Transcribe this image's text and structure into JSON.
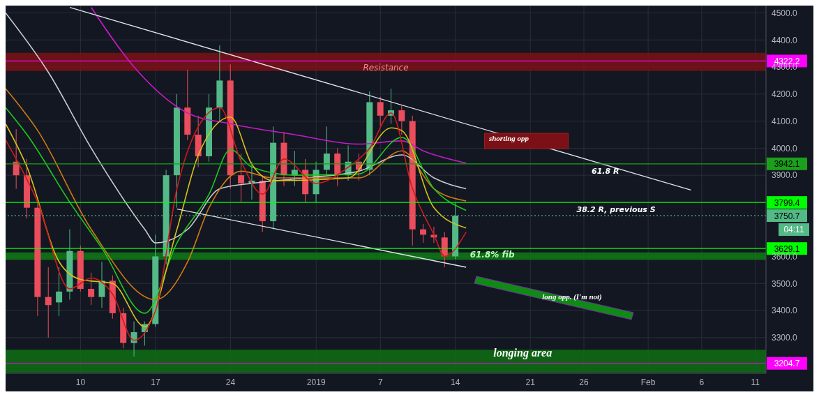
{
  "chart_data": {
    "type": "candlestick",
    "x": [
      "2018-12-04",
      "2018-12-05",
      "2018-12-06",
      "2018-12-07",
      "2018-12-08",
      "2018-12-09",
      "2018-12-10",
      "2018-12-11",
      "2018-12-12",
      "2018-12-13",
      "2018-12-14",
      "2018-12-15",
      "2018-12-16",
      "2018-12-17",
      "2018-12-18",
      "2018-12-19",
      "2018-12-20",
      "2018-12-21",
      "2018-12-22",
      "2018-12-23",
      "2018-12-24",
      "2018-12-25",
      "2018-12-26",
      "2018-12-27",
      "2018-12-28",
      "2018-12-29",
      "2018-12-30",
      "2018-12-31",
      "2019-01-01",
      "2019-01-02",
      "2019-01-03",
      "2019-01-04",
      "2019-01-05",
      "2019-01-06",
      "2019-01-07",
      "2019-01-08",
      "2019-01-09",
      "2019-01-10",
      "2019-01-11",
      "2019-01-12",
      "2019-01-13",
      "2019-01-14"
    ],
    "ohlc": [
      [
        3950,
        4070,
        3850,
        3900
      ],
      [
        3900,
        3960,
        3740,
        3780
      ],
      [
        3780,
        3800,
        3380,
        3450
      ],
      [
        3450,
        3560,
        3300,
        3420
      ],
      [
        3430,
        3560,
        3380,
        3470
      ],
      [
        3470,
        3700,
        3440,
        3620
      ],
      [
        3620,
        3640,
        3470,
        3480
      ],
      [
        3480,
        3540,
        3420,
        3450
      ],
      [
        3450,
        3580,
        3410,
        3510
      ],
      [
        3510,
        3530,
        3370,
        3390
      ],
      [
        3390,
        3410,
        3260,
        3280
      ],
      [
        3280,
        3360,
        3230,
        3320
      ],
      [
        3320,
        3360,
        3270,
        3350
      ],
      [
        3350,
        3680,
        3340,
        3600
      ],
      [
        3600,
        3920,
        3570,
        3900
      ],
      [
        3900,
        4200,
        3780,
        4150
      ],
      [
        4150,
        4290,
        4030,
        4050
      ],
      [
        4050,
        4120,
        3930,
        3970
      ],
      [
        3970,
        4200,
        3950,
        4150
      ],
      [
        4150,
        4380,
        4100,
        4250
      ],
      [
        4250,
        4310,
        3850,
        3900
      ],
      [
        3900,
        3980,
        3800,
        3870
      ],
      [
        3870,
        3950,
        3810,
        3880
      ],
      [
        3880,
        3900,
        3690,
        3730
      ],
      [
        3730,
        4080,
        3700,
        4020
      ],
      [
        4020,
        4060,
        3860,
        3900
      ],
      [
        3900,
        3990,
        3860,
        3920
      ],
      [
        3920,
        3960,
        3800,
        3830
      ],
      [
        3830,
        3950,
        3800,
        3920
      ],
      [
        3920,
        4080,
        3900,
        3980
      ],
      [
        3980,
        4000,
        3860,
        3900
      ],
      [
        3900,
        4010,
        3880,
        3950
      ],
      [
        3950,
        3980,
        3880,
        3920
      ],
      [
        3920,
        4210,
        3900,
        4170
      ],
      [
        4170,
        4190,
        4080,
        4120
      ],
      [
        4120,
        4220,
        4090,
        4140
      ],
      [
        4140,
        4160,
        4050,
        4100
      ],
      [
        4100,
        4120,
        3640,
        3700
      ],
      [
        3700,
        3720,
        3650,
        3680
      ],
      [
        3680,
        3710,
        3650,
        3670
      ],
      [
        3670,
        3690,
        3560,
        3600
      ],
      [
        3600,
        3800,
        3590,
        3750.7
      ]
    ],
    "colors": [
      "#eb4d5c",
      "#eb4d5c",
      "#eb4d5c",
      "#eb4d5c",
      "#53b987",
      "#53b987",
      "#eb4d5c",
      "#eb4d5c",
      "#53b987",
      "#eb4d5c",
      "#eb4d5c",
      "#53b987",
      "#53b987",
      "#53b987",
      "#53b987",
      "#53b987",
      "#eb4d5c",
      "#eb4d5c",
      "#53b987",
      "#53b987",
      "#eb4d5c",
      "#eb4d5c",
      "#53b987",
      "#eb4d5c",
      "#53b987",
      "#eb4d5c",
      "#53b987",
      "#eb4d5c",
      "#53b987",
      "#53b987",
      "#eb4d5c",
      "#53b987",
      "#eb4d5c",
      "#53b987",
      "#eb4d5c",
      "#53b987",
      "#eb4d5c",
      "#eb4d5c",
      "#eb4d5c",
      "#eb4d5c",
      "#eb4d5c",
      "#53b987"
    ],
    "series": [
      {
        "type": "line",
        "color": "#c61bc6",
        "x": [
          "2018-12-11",
          "2018-12-15",
          "2018-12-20",
          "2018-12-24",
          "2018-12-30",
          "2019-01-05",
          "2019-01-09",
          "2019-01-11",
          "2019-01-15"
        ],
        "values": [
          4520,
          4300,
          4130,
          4090,
          4050,
          4015,
          4027,
          3990,
          3945
        ]
      },
      {
        "type": "line",
        "color": "#c9c9d0",
        "x": [
          "2018-12-03",
          "2018-12-07",
          "2018-12-11",
          "2018-12-16",
          "2018-12-17",
          "2018-12-20",
          "2018-12-23",
          "2018-12-26",
          "2018-12-31",
          "2019-01-05",
          "2019-01-09",
          "2019-01-12",
          "2019-01-15"
        ],
        "values": [
          4500,
          4280,
          4000,
          3700,
          3650,
          3700,
          3850,
          3870,
          3890,
          3915,
          3975,
          3890,
          3850
        ]
      },
      {
        "type": "line",
        "color": "#d07a10",
        "x": [
          "2018-12-03",
          "2018-12-06",
          "2018-12-11",
          "2018-12-17",
          "2018-12-20",
          "2018-12-22",
          "2018-12-25",
          "2018-12-28",
          "2019-01-05",
          "2019-01-09",
          "2019-01-12",
          "2019-01-15"
        ],
        "values": [
          4220,
          4065,
          3700,
          3440,
          3580,
          3780,
          3915,
          3890,
          3890,
          3990,
          3850,
          3805
        ]
      },
      {
        "type": "line",
        "color": "#1ec81e",
        "x": [
          "2018-12-03",
          "2018-12-05",
          "2018-12-09",
          "2018-12-12",
          "2018-12-16",
          "2018-12-19",
          "2018-12-22",
          "2018-12-24",
          "2018-12-26",
          "2018-12-30",
          "2019-01-05",
          "2019-01-09",
          "2019-01-12",
          "2019-01-15"
        ],
        "values": [
          4150,
          4050,
          3800,
          3630,
          3390,
          3650,
          3830,
          3995,
          3930,
          3900,
          3905,
          4040,
          3850,
          3770
        ]
      },
      {
        "type": "line",
        "color": "#d8c21a",
        "x": [
          "2018-12-03",
          "2018-12-05",
          "2018-12-08",
          "2018-12-10",
          "2018-12-13",
          "2018-12-16",
          "2018-12-19",
          "2018-12-21",
          "2018-12-24",
          "2018-12-26",
          "2018-12-28",
          "2019-01-04",
          "2019-01-08",
          "2019-01-09",
          "2019-01-12",
          "2019-01-15"
        ],
        "values": [
          4090,
          3930,
          3580,
          3515,
          3500,
          3340,
          3700,
          3975,
          4115,
          3940,
          3880,
          3890,
          4075,
          4065,
          3780,
          3705
        ]
      },
      {
        "type": "line",
        "color": "#d11a1a",
        "x": [
          "2018-12-03",
          "2018-12-06",
          "2018-12-09",
          "2018-12-11",
          "2018-12-13",
          "2018-12-15",
          "2018-12-17",
          "2018-12-19",
          "2018-12-21",
          "2018-12-23",
          "2018-12-25",
          "2018-12-27",
          "2018-12-29",
          "2019-01-01",
          "2019-01-04",
          "2019-01-06",
          "2019-01-08",
          "2019-01-10",
          "2019-01-12",
          "2019-01-13",
          "2019-01-15"
        ],
        "values": [
          4030,
          3800,
          3480,
          3520,
          3460,
          3290,
          3400,
          3850,
          4080,
          4150,
          3950,
          3830,
          3960,
          3870,
          3930,
          4000,
          4130,
          3850,
          3680,
          3600,
          3690
        ]
      },
      {
        "type": "line",
        "color": "#e0e3eb",
        "x": [
          "2018-12-09",
          "2019-02-05"
        ],
        "values": [
          4520,
          3845
        ]
      },
      {
        "type": "line",
        "color": "#e0e3eb",
        "x": [
          "2018-12-19",
          "2019-01-15"
        ],
        "values": [
          3775,
          3560
        ]
      }
    ],
    "xlim": [
      "2018-12-03",
      "2019-02-12"
    ],
    "xticks": [
      {
        "value": "2018-12-10",
        "label": "10"
      },
      {
        "value": "2018-12-17",
        "label": "17"
      },
      {
        "value": "2018-12-24",
        "label": "24"
      },
      {
        "value": "2019-01-01",
        "label": "2019"
      },
      {
        "value": "2019-01-07",
        "label": "7"
      },
      {
        "value": "2019-01-14",
        "label": "14"
      },
      {
        "value": "2019-01-21",
        "label": "21"
      },
      {
        "value": "2019-01-26",
        "label": "26"
      },
      {
        "value": "2019-02-01",
        "label": "Feb"
      },
      {
        "value": "2019-02-06",
        "label": "6"
      },
      {
        "value": "2019-02-11",
        "label": "11"
      }
    ],
    "ylim": [
      3168,
      4527
    ],
    "yticks": [
      {
        "value": 3300,
        "label": "3300.0"
      },
      {
        "value": 3400,
        "label": "3400.0"
      },
      {
        "value": 3500,
        "label": "3500.0"
      },
      {
        "value": 3600,
        "label": "3600.0"
      },
      {
        "value": 3900,
        "label": "3900.0"
      },
      {
        "value": 4000,
        "label": "4000.0"
      },
      {
        "value": 4100,
        "label": "4100.0"
      },
      {
        "value": 4200,
        "label": "4200.0"
      },
      {
        "value": 4300,
        "label": "4300.0"
      },
      {
        "value": 4400,
        "label": "4400.0"
      },
      {
        "value": 4500,
        "label": "4500.0"
      }
    ],
    "grid": true,
    "bands": [
      {
        "axis": "y",
        "from": 4285,
        "to": 4352,
        "label": "Resistance",
        "color": "#7b1116"
      },
      {
        "axis": "y",
        "from": 3587,
        "to": 3615,
        "label": "61.8% fib",
        "color": "#0f7a14"
      },
      {
        "axis": "y",
        "from": 3170,
        "to": 3255,
        "label": "longing area",
        "color": "#0f6e14"
      }
    ],
    "ref_lines": [
      {
        "axis": "y",
        "value": 4322.2,
        "label": "4322.2",
        "color": "#ff00ff"
      },
      {
        "axis": "y",
        "value": 3942.1,
        "label": "3942.1",
        "color": "#1aa01a"
      },
      {
        "axis": "y",
        "value": 3799.4,
        "label": "3799.4",
        "color": "#00ff00"
      },
      {
        "axis": "y",
        "value": 3750.7,
        "label": "3750.7",
        "color": "#53b987",
        "line_style": "dotted"
      },
      {
        "axis": "y",
        "value": 3629.1,
        "label": "3629.1",
        "color": "#00ff00"
      },
      {
        "axis": "y",
        "value": 3204.7,
        "label": "3204.7",
        "color": "#ff00ff"
      }
    ],
    "annotations": [
      {
        "text": "shorting opp",
        "x": "2019-01-19",
        "y": 4037
      },
      "long opp. (I'm not)",
      {
        "text": "61.8 R",
        "x": "2019-01-28",
        "y": 3942.1
      },
      {
        "text": "38.2 R, previous S",
        "x": "2019-01-29",
        "y": 3799.4
      },
      "04:11"
    ]
  }
}
